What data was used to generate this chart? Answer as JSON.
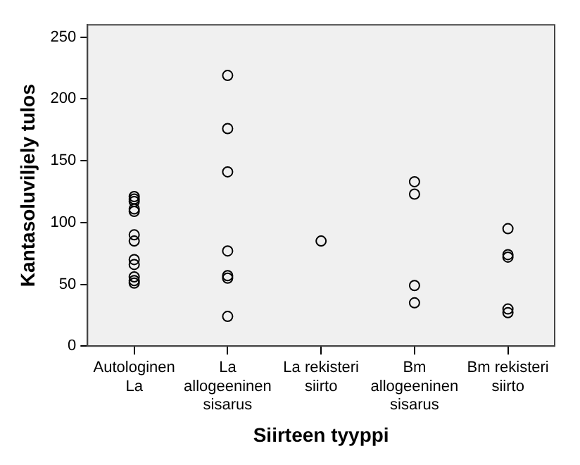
{
  "chart_data": {
    "type": "scatter",
    "xlabel": "Siirteen tyyppi",
    "ylabel": "Kantasoluviljely tulos",
    "categories": [
      "Autologinen\nLa",
      "La\nallogeeninen\nsisarus",
      "La rekisteri\nsiirto",
      "Bm\nallogeeninen\nsisarus",
      "Bm rekisteri\nsiirto"
    ],
    "series": [
      {
        "color": "#000000",
        "x": [
          "Autologinen\nLa",
          "Autologinen\nLa",
          "Autologinen\nLa",
          "Autologinen\nLa",
          "Autologinen\nLa",
          "Autologinen\nLa",
          "Autologinen\nLa",
          "Autologinen\nLa",
          "Autologinen\nLa",
          "Autologinen\nLa",
          "Autologinen\nLa",
          "Autologinen\nLa",
          "La\nallogeeninen\nsisarus",
          "La\nallogeeninen\nsisarus",
          "La\nallogeeninen\nsisarus",
          "La\nallogeeninen\nsisarus",
          "La\nallogeeninen\nsisarus",
          "La\nallogeeninen\nsisarus",
          "La\nallogeeninen\nsisarus",
          "La rekisteri\nsiirto",
          "Bm\nallogeeninen\nsisarus",
          "Bm\nallogeeninen\nsisarus",
          "Bm\nallogeeninen\nsisarus",
          "Bm\nallogeeninen\nsisarus",
          "Bm rekisteri\nsiirto",
          "Bm rekisteri\nsiirto",
          "Bm rekisteri\nsiirto",
          "Bm rekisteri\nsiirto",
          "Bm rekisteri\nsiirto"
        ],
        "values": [
          121,
          119,
          117,
          111,
          109,
          90,
          85,
          70,
          66,
          56,
          53,
          51,
          219,
          176,
          141,
          77,
          57,
          55,
          24,
          85,
          133,
          123,
          49,
          35,
          95,
          74,
          72,
          30,
          27
        ]
      }
    ],
    "ylim": [
      0,
      260
    ],
    "yticks": [
      0,
      50,
      100,
      150,
      200,
      250
    ],
    "grid": false,
    "legend": false,
    "marker": "circle"
  }
}
